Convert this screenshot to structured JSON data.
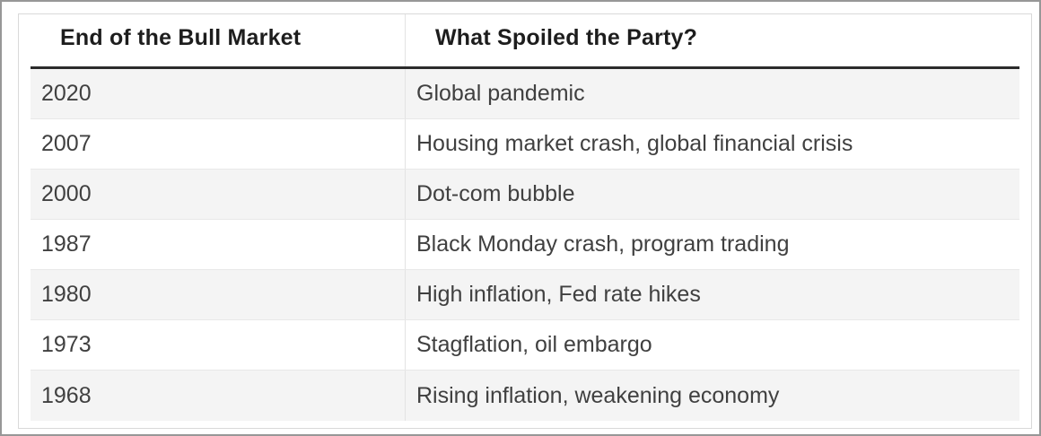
{
  "chart_data": {
    "type": "table",
    "columns": [
      "End of the Bull Market",
      "What Spoiled the Party?"
    ],
    "rows": [
      [
        "2020",
        "Global pandemic"
      ],
      [
        "2007",
        "Housing market crash, global financial crisis"
      ],
      [
        "2000",
        "Dot-com bubble"
      ],
      [
        "1987",
        "Black Monday crash, program trading"
      ],
      [
        "1980",
        "High inflation, Fed rate hikes"
      ],
      [
        "1973",
        "Stagflation, oil embargo"
      ],
      [
        "1968",
        "Rising inflation, weakening economy"
      ]
    ],
    "layout_hints": {
      "zebra_striping": true,
      "first_data_row_shaded": true,
      "header_bold": true,
      "header_thick_underline": true
    }
  },
  "colors": {
    "outer_border": "#979797",
    "card_border": "#d9d9d9",
    "header_underline": "#2b2b2b",
    "zebra_row": "#f4f4f4",
    "row_divider": "#e8e8e8",
    "column_divider": "#e3e3e3",
    "header_text": "#1d1d1d",
    "body_text": "#404040",
    "background": "#ffffff"
  }
}
